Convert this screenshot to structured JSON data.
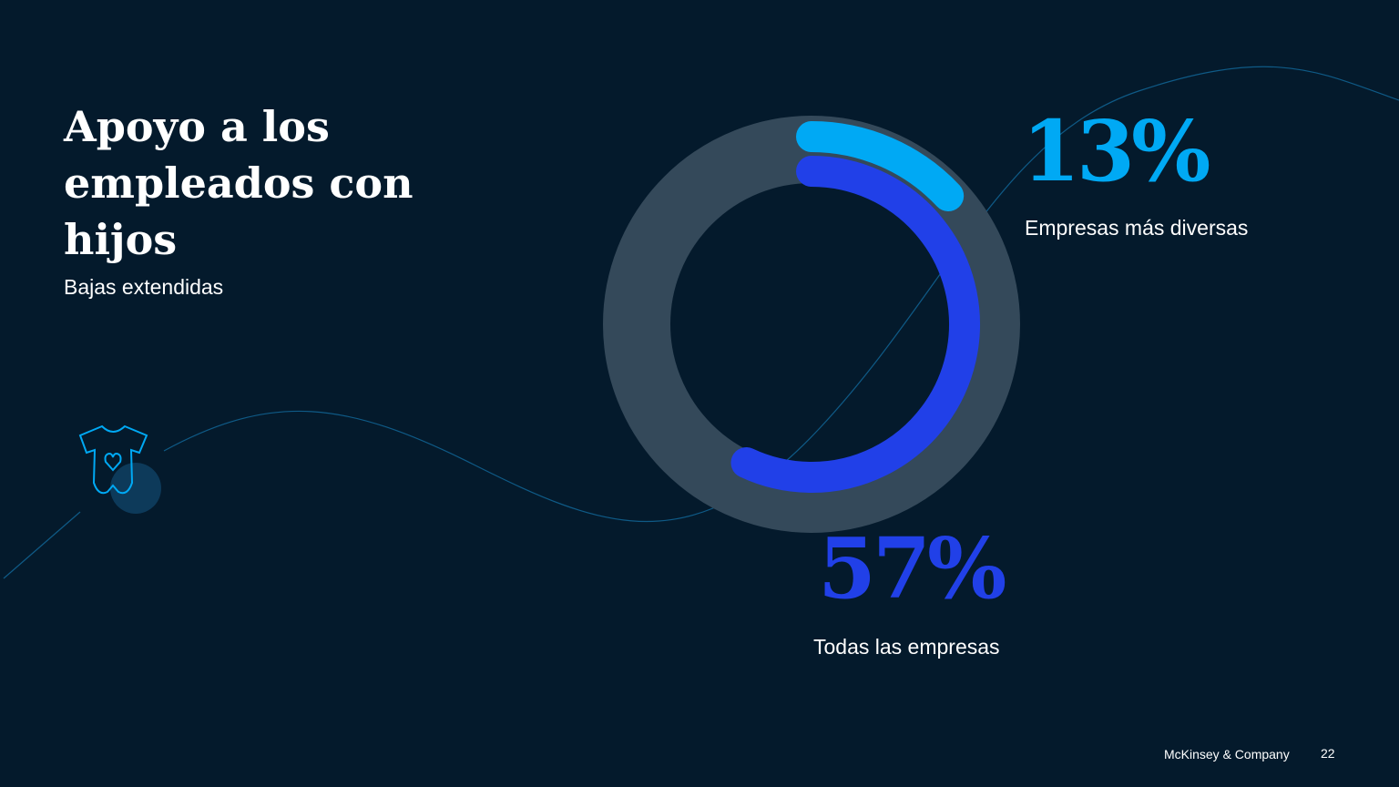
{
  "chart_data": {
    "type": "radial-bar",
    "title": "Apoyo a los empleados con hijos",
    "subtitle": "Bajas extendidas",
    "series": [
      {
        "name": "Empresas más diversas",
        "color": "#00a9f4",
        "values": [
          13
        ],
        "value_labels": [
          "13%"
        ]
      },
      {
        "name": "Todas las empresas",
        "color": "#2140e8",
        "values": [
          57
        ],
        "value_labels": [
          "57%"
        ]
      }
    ],
    "ylim": [
      0,
      100
    ],
    "track_color": "#34495a"
  },
  "footer": {
    "source": "McKinsey & Company",
    "page": 22
  }
}
